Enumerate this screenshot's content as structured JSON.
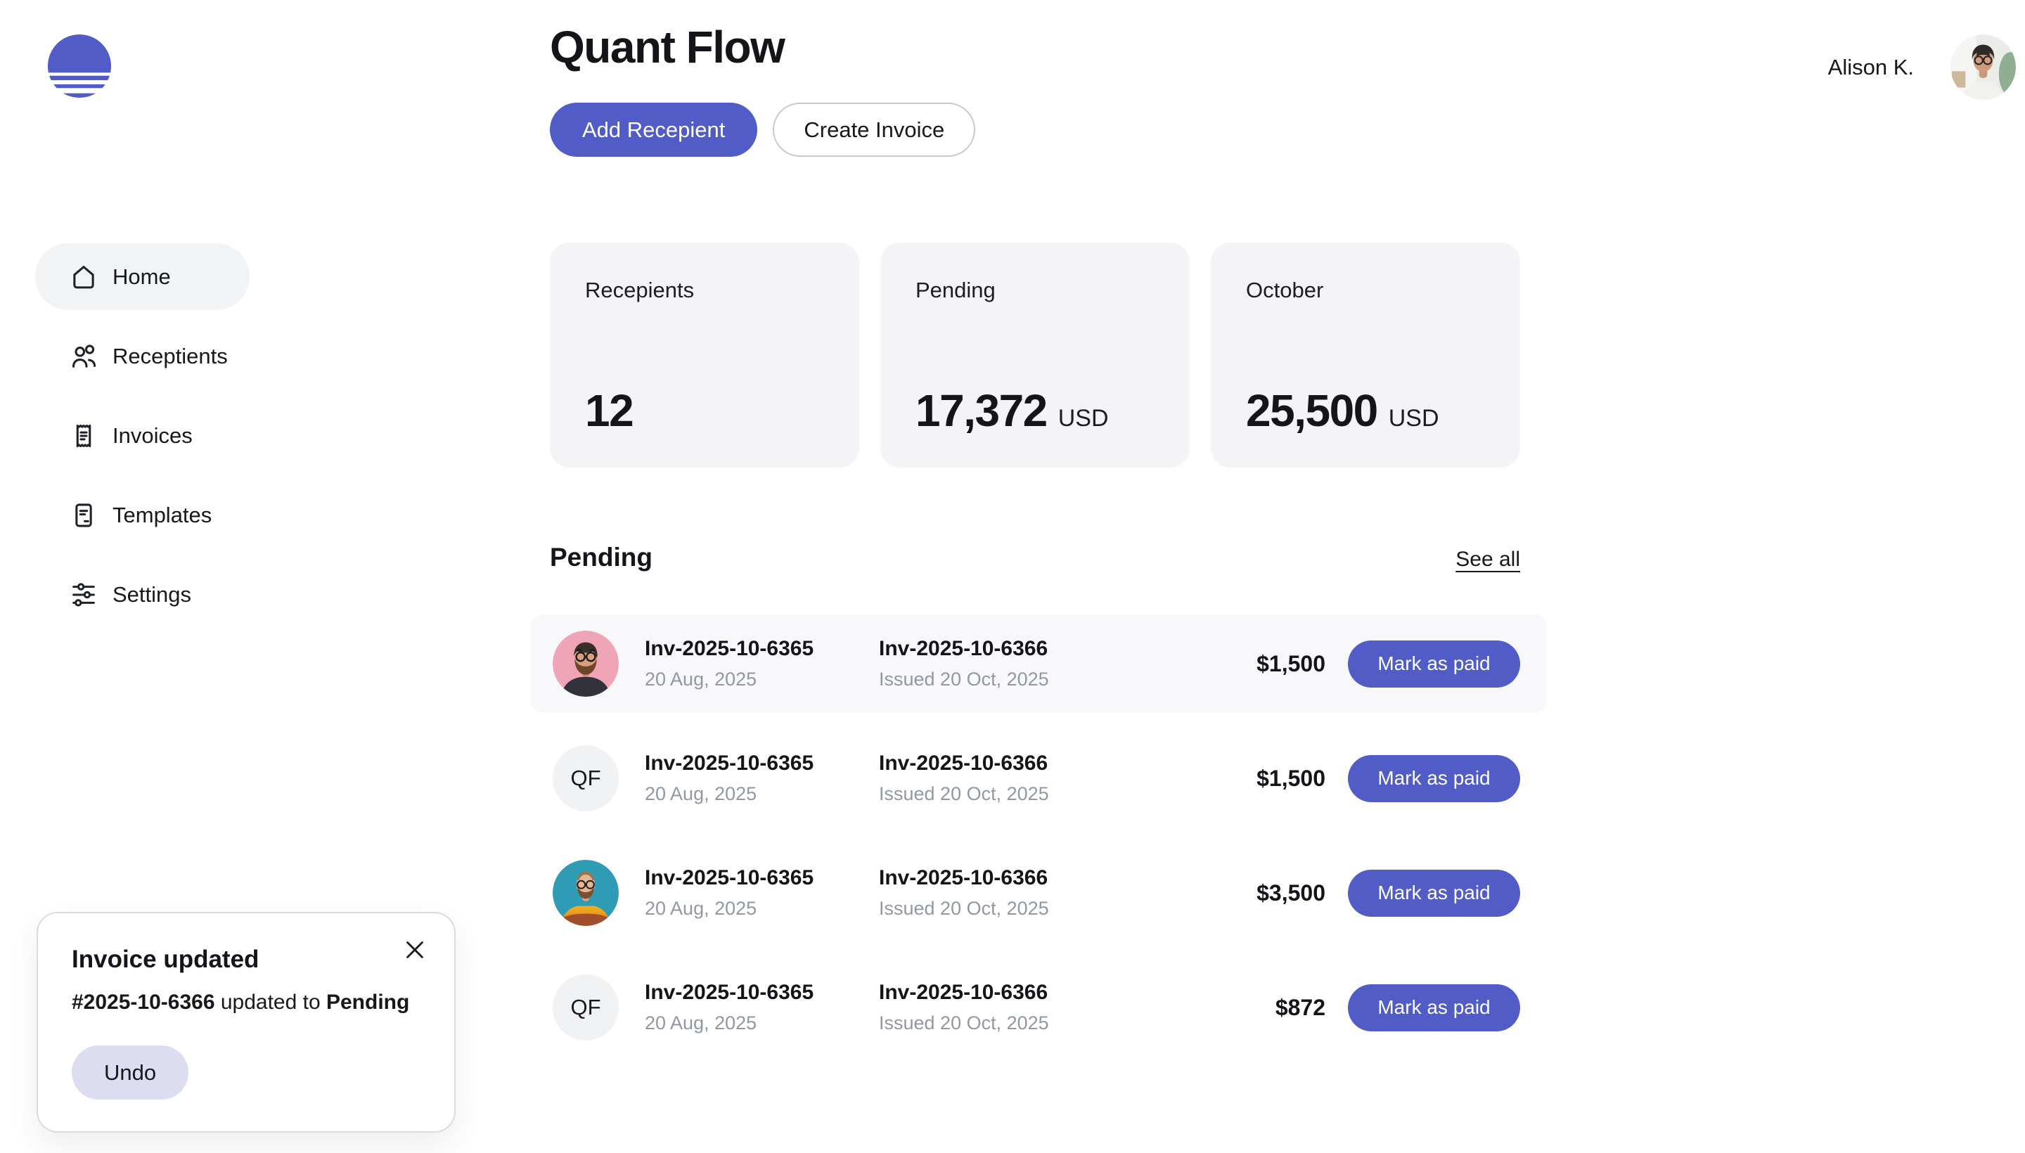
{
  "brand": {
    "accent": "#515CC6",
    "logo_icon": "sun-stripes-logo"
  },
  "header": {
    "title": "Quant Flow",
    "add_recipient_label": "Add Recepient",
    "create_invoice_label": "Create Invoice",
    "user": {
      "name": "Alison K.",
      "avatar": {
        "type": "photo",
        "variant": "woman-office",
        "bg": "#E9ECE8"
      }
    }
  },
  "sidebar": {
    "items": [
      {
        "label": "Home",
        "icon": "home-icon",
        "active": true
      },
      {
        "label": "Receptients",
        "icon": "users-icon",
        "active": false
      },
      {
        "label": "Invoices",
        "icon": "receipt-icon",
        "active": false
      },
      {
        "label": "Templates",
        "icon": "document-icon",
        "active": false
      },
      {
        "label": "Settings",
        "icon": "sliders-icon",
        "active": false
      }
    ]
  },
  "stats": {
    "cards": [
      {
        "label": "Recepients",
        "value": "12",
        "unit": ""
      },
      {
        "label": "Pending",
        "value": "17,372",
        "unit": "USD"
      },
      {
        "label": "October",
        "value": "25,500",
        "unit": "USD"
      }
    ]
  },
  "pending_section": {
    "title": "Pending",
    "see_all_label": "See all",
    "rows": [
      {
        "avatar": {
          "type": "photo",
          "variant": "man-pink-beard",
          "bg": "#F0A4B8"
        },
        "invoice_no": "Inv-2025-10-6365",
        "invoice_date": "20 Aug, 2025",
        "linked_invoice_no": "Inv-2025-10-6366",
        "issued_date": "Issued 20 Oct, 2025",
        "amount": "$1,500",
        "action_label": "Mark as paid",
        "highlighted": true
      },
      {
        "avatar": {
          "type": "initials",
          "initials": "QF",
          "bg": "#F1F2F4"
        },
        "invoice_no": "Inv-2025-10-6365",
        "invoice_date": "20 Aug, 2025",
        "linked_invoice_no": "Inv-2025-10-6366",
        "issued_date": "Issued 20 Oct, 2025",
        "amount": "$1,500",
        "action_label": "Mark as paid",
        "highlighted": false
      },
      {
        "avatar": {
          "type": "photo",
          "variant": "man-teal-orange",
          "bg": "#2F9CB5"
        },
        "invoice_no": "Inv-2025-10-6365",
        "invoice_date": "20 Aug, 2025",
        "linked_invoice_no": "Inv-2025-10-6366",
        "issued_date": "Issued 20 Oct, 2025",
        "amount": "$3,500",
        "action_label": "Mark as paid",
        "highlighted": false
      },
      {
        "avatar": {
          "type": "initials",
          "initials": "QF",
          "bg": "#F1F2F4"
        },
        "invoice_no": "Inv-2025-10-6365",
        "invoice_date": "20 Aug, 2025",
        "linked_invoice_no": "Inv-2025-10-6366",
        "issued_date": "Issued 20 Oct, 2025",
        "amount": "$872",
        "action_label": "Mark as paid",
        "highlighted": false
      }
    ]
  },
  "toast": {
    "title": "Invoice updated",
    "body_parts": [
      {
        "text": "#2025-10-6366",
        "bold": true
      },
      {
        "text": " updated to ",
        "bold": false
      },
      {
        "text": "Pending",
        "bold": true
      }
    ],
    "undo_label": "Undo",
    "close_icon": "close-icon"
  }
}
